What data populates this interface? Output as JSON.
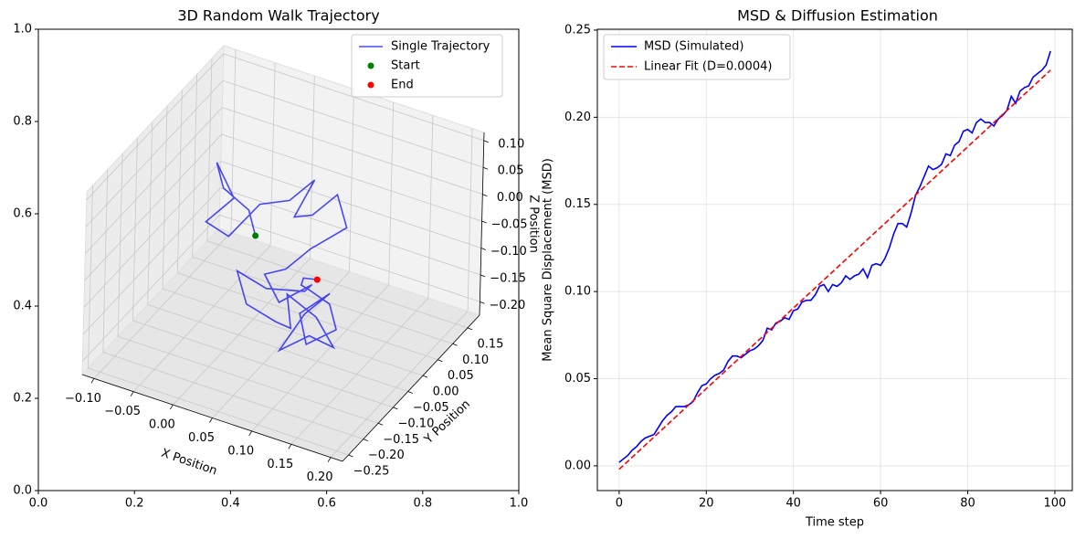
{
  "chart_data": [
    {
      "type": "line3d",
      "title": "3D Random Walk Trajectory",
      "x_label": "X Position",
      "y_label": "Y Position",
      "z_label": "Z Position",
      "xlim": [
        -0.115,
        0.215
      ],
      "ylim": [
        -0.27,
        0.19
      ],
      "zlim": [
        -0.225,
        0.115
      ],
      "xticks": [
        {
          "value": -0.1,
          "label": "−0.10"
        },
        {
          "value": -0.05,
          "label": "−0.05"
        },
        {
          "value": 0,
          "label": "0.00"
        },
        {
          "value": 0.05,
          "label": "0.05"
        },
        {
          "value": 0.1,
          "label": "0.10"
        },
        {
          "value": 0.15,
          "label": "0.15"
        },
        {
          "value": 0.2,
          "label": "0.20"
        }
      ],
      "yticks": [
        {
          "value": -0.25,
          "label": "−0.25"
        },
        {
          "value": -0.2,
          "label": "−0.20"
        },
        {
          "value": -0.15,
          "label": "−0.15"
        },
        {
          "value": -0.1,
          "label": "−0.10"
        },
        {
          "value": -0.05,
          "label": "−0.05"
        },
        {
          "value": 0,
          "label": "0.00"
        },
        {
          "value": 0.05,
          "label": "0.05"
        },
        {
          "value": 0.1,
          "label": "0.10"
        },
        {
          "value": 0.15,
          "label": "0.15"
        }
      ],
      "zticks": [
        {
          "value": -0.2,
          "label": "−0.20"
        },
        {
          "value": -0.15,
          "label": "−0.15"
        },
        {
          "value": -0.1,
          "label": "−0.10"
        },
        {
          "value": -0.05,
          "label": "−0.05"
        },
        {
          "value": 0,
          "label": "0.00"
        },
        {
          "value": 0.05,
          "label": "0.05"
        },
        {
          "value": 0.1,
          "label": "0.10"
        }
      ],
      "frame_xlim": [
        0,
        1
      ],
      "frame_ylim": [
        0,
        1
      ],
      "frame_xticks": [
        {
          "value": 0,
          "label": "0.0"
        },
        {
          "value": 0.2,
          "label": "0.2"
        },
        {
          "value": 0.4,
          "label": "0.4"
        },
        {
          "value": 0.6,
          "label": "0.6"
        },
        {
          "value": 0.8,
          "label": "0.8"
        },
        {
          "value": 1,
          "label": "1.0"
        }
      ],
      "frame_yticks": [
        {
          "value": 0,
          "label": "0.0"
        },
        {
          "value": 0.2,
          "label": "0.2"
        },
        {
          "value": 0.4,
          "label": "0.4"
        },
        {
          "value": 0.6,
          "label": "0.6"
        },
        {
          "value": 0.8,
          "label": "0.8"
        },
        {
          "value": 1,
          "label": "1.0"
        }
      ],
      "grid": true,
      "legend": "upper right",
      "series": [
        {
          "name": "Single Trajectory",
          "color": "blue",
          "alpha": 0.7,
          "kind": "line",
          "x": [
            0.0,
            -0.02,
            -0.06,
            -0.08,
            -0.05,
            -0.07,
            -0.03,
            -0.01,
            0.02,
            0.04,
            0.03,
            0.06,
            0.08,
            0.1,
            0.07,
            0.05,
            0.02,
            0.05,
            0.08,
            0.06,
            0.03,
            0.0,
            0.02,
            0.05,
            0.08,
            0.06,
            0.09,
            0.12,
            0.1,
            0.07,
            0.09,
            0.11,
            0.08,
            0.1,
            0.13,
            0.11,
            0.09,
            0.07,
            0.08,
            0.09
          ],
          "y": [
            0.0,
            0.03,
            0.05,
            0.08,
            0.06,
            0.02,
            -0.01,
            0.04,
            0.06,
            0.09,
            0.05,
            0.03,
            0.06,
            0.04,
            0.0,
            -0.03,
            -0.02,
            -0.05,
            -0.02,
            0.01,
            -0.04,
            -0.06,
            -0.08,
            -0.06,
            -0.09,
            -0.05,
            -0.03,
            -0.05,
            -0.08,
            -0.1,
            -0.07,
            -0.04,
            -0.06,
            -0.09,
            -0.07,
            -0.04,
            -0.06,
            -0.03,
            -0.05,
            -0.03
          ],
          "z": [
            -0.07,
            -0.05,
            -0.04,
            -0.02,
            -0.06,
            -0.09,
            -0.08,
            -0.04,
            -0.03,
            0.0,
            -0.05,
            -0.02,
            0.01,
            -0.03,
            -0.06,
            -0.09,
            -0.12,
            -0.14,
            -0.11,
            -0.15,
            -0.13,
            -0.1,
            -0.14,
            -0.17,
            -0.15,
            -0.12,
            -0.16,
            -0.19,
            -0.16,
            -0.19,
            -0.13,
            -0.1,
            -0.14,
            -0.17,
            -0.14,
            -0.12,
            -0.09,
            -0.11,
            -0.08,
            -0.09
          ]
        },
        {
          "name": "Start",
          "color": "green",
          "kind": "scatter",
          "x": [
            0.0
          ],
          "y": [
            0.0
          ],
          "z": [
            -0.07
          ]
        },
        {
          "name": "End",
          "color": "red",
          "kind": "scatter",
          "x": [
            0.09
          ],
          "y": [
            -0.03
          ],
          "z": [
            -0.09
          ]
        }
      ]
    },
    {
      "type": "line",
      "title": "MSD & Diffusion Estimation",
      "x_label": "Time step",
      "y_label": "Mean Square Displacement (MSD)",
      "xlim": [
        -5,
        104
      ],
      "ylim": [
        -0.0142,
        0.2505
      ],
      "xticks": [
        0,
        20,
        40,
        60,
        80,
        100
      ],
      "yticks": [
        {
          "value": 0,
          "label": "0.00"
        },
        {
          "value": 0.05,
          "label": "0.05"
        },
        {
          "value": 0.1,
          "label": "0.10"
        },
        {
          "value": 0.15,
          "label": "0.15"
        },
        {
          "value": 0.2,
          "label": "0.20"
        },
        {
          "value": 0.25,
          "label": "0.25"
        }
      ],
      "grid": true,
      "legend": "upper left",
      "series": [
        {
          "name": "MSD (Simulated)",
          "color": "#0000ff",
          "dashed": false,
          "x": [
            0,
            1,
            2,
            3,
            4,
            5,
            6,
            7,
            8,
            9,
            10,
            11,
            12,
            13,
            14,
            15,
            16,
            17,
            18,
            19,
            20,
            21,
            22,
            23,
            24,
            25,
            26,
            27,
            28,
            29,
            30,
            31,
            32,
            33,
            34,
            35,
            36,
            37,
            38,
            39,
            40,
            41,
            42,
            43,
            44,
            45,
            46,
            47,
            48,
            49,
            50,
            51,
            52,
            53,
            54,
            55,
            56,
            57,
            58,
            59,
            60,
            61,
            62,
            63,
            64,
            65,
            66,
            67,
            68,
            69,
            70,
            71,
            72,
            73,
            74,
            75,
            76,
            77,
            78,
            79,
            80,
            81,
            82,
            83,
            84,
            85,
            86,
            87,
            88,
            89,
            90,
            91,
            92,
            93,
            94,
            95,
            96,
            97,
            98,
            99
          ],
          "values": [
            0.002,
            0.004,
            0.006,
            0.009,
            0.011,
            0.014,
            0.016,
            0.017,
            0.018,
            0.022,
            0.026,
            0.029,
            0.031,
            0.034,
            0.034,
            0.034,
            0.035,
            0.037,
            0.042,
            0.046,
            0.047,
            0.05,
            0.052,
            0.053,
            0.055,
            0.06,
            0.063,
            0.063,
            0.062,
            0.064,
            0.066,
            0.067,
            0.069,
            0.072,
            0.079,
            0.078,
            0.082,
            0.083,
            0.085,
            0.084,
            0.089,
            0.09,
            0.094,
            0.095,
            0.095,
            0.098,
            0.103,
            0.104,
            0.1,
            0.104,
            0.103,
            0.105,
            0.109,
            0.107,
            0.109,
            0.11,
            0.113,
            0.108,
            0.115,
            0.116,
            0.115,
            0.119,
            0.125,
            0.133,
            0.139,
            0.139,
            0.137,
            0.145,
            0.155,
            0.16,
            0.166,
            0.172,
            0.17,
            0.171,
            0.173,
            0.179,
            0.178,
            0.184,
            0.186,
            0.192,
            0.193,
            0.191,
            0.197,
            0.199,
            0.197,
            0.197,
            0.195,
            0.199,
            0.201,
            0.204,
            0.212,
            0.208,
            0.215,
            0.217,
            0.218,
            0.223,
            0.225,
            0.227,
            0.23,
            0.238
          ]
        },
        {
          "name": "Linear Fit (D=0.0004)",
          "color": "#ff0000",
          "dashed": true,
          "x": [
            0,
            99
          ],
          "values": [
            -0.002,
            0.227
          ]
        }
      ]
    }
  ]
}
